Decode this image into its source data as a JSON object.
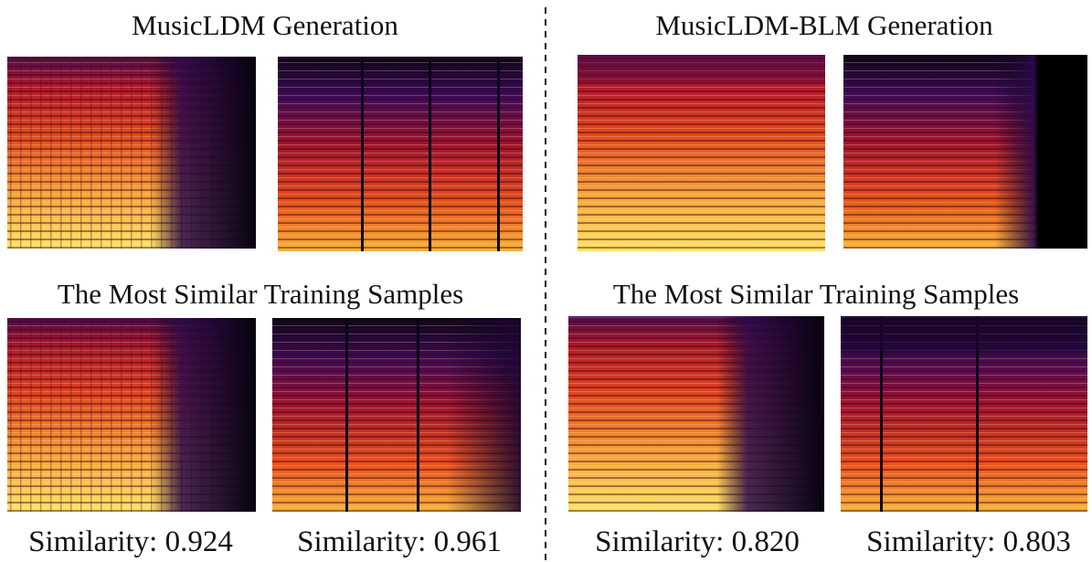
{
  "left": {
    "title": "MusicLDM Generation",
    "subtitle": "The Most Similar Training Samples",
    "captions": [
      "Similarity: 0.924",
      "Similarity: 0.961"
    ]
  },
  "right": {
    "title": "MusicLDM-BLM Generation",
    "subtitle": "The Most Similar Training Samples",
    "captions": [
      "Similarity: 0.820",
      "Similarity: 0.803"
    ]
  }
}
